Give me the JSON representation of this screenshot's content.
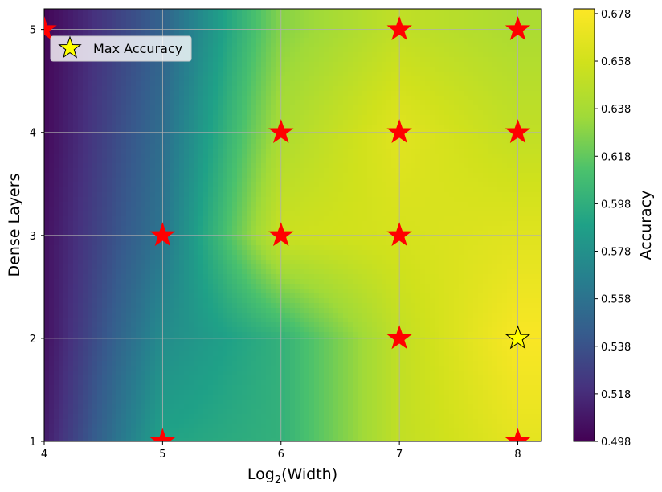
{
  "chart_data": {
    "type": "heatmap",
    "title": "",
    "xlabel": "Log",
    "xlabel_sub": "2",
    "xlabel_suffix": "(Width)",
    "ylabel": "Dense Layers",
    "colorbar_label": "Accuracy",
    "xlim": [
      4,
      8.2
    ],
    "ylim": [
      1,
      5.2
    ],
    "x_ticks": [
      "4",
      "5",
      "6",
      "7",
      "8"
    ],
    "y_ticks": [
      "1",
      "2",
      "3",
      "4",
      "5"
    ],
    "colorbar_ticks": [
      "0.498",
      "0.518",
      "0.538",
      "0.558",
      "0.578",
      "0.598",
      "0.618",
      "0.638",
      "0.658",
      "0.678"
    ],
    "colorbar_range": [
      0.498,
      0.68
    ],
    "grid": true,
    "colormap": "viridis",
    "legend": {
      "label": "Max Accuracy",
      "position": "top-left"
    },
    "points": [
      {
        "x": 4,
        "y": 5
      },
      {
        "x": 5,
        "y": 1
      },
      {
        "x": 5,
        "y": 3
      },
      {
        "x": 6,
        "y": 3
      },
      {
        "x": 6,
        "y": 4
      },
      {
        "x": 7,
        "y": 2
      },
      {
        "x": 7,
        "y": 3
      },
      {
        "x": 7,
        "y": 4
      },
      {
        "x": 7,
        "y": 5
      },
      {
        "x": 8,
        "y": 1
      },
      {
        "x": 8,
        "y": 4
      },
      {
        "x": 8,
        "y": 5
      }
    ],
    "max_point": {
      "x": 8,
      "y": 2
    },
    "marker_color": "#ff0000",
    "max_marker_color": "#ffff00"
  }
}
